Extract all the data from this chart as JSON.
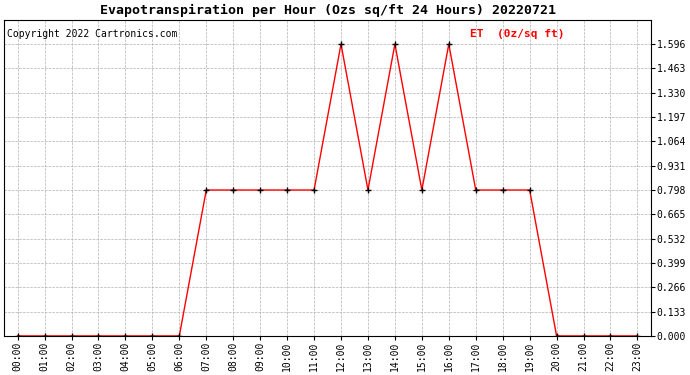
{
  "title": "Evapotranspiration per Hour (Ozs sq/ft 24 Hours) 20220721",
  "copyright": "Copyright 2022 Cartronics.com",
  "legend_label": "ET  (0z/sq ft)",
  "hours": [
    0,
    1,
    2,
    3,
    4,
    5,
    6,
    7,
    8,
    9,
    10,
    11,
    12,
    13,
    14,
    15,
    16,
    17,
    18,
    19,
    20,
    21,
    22,
    23
  ],
  "values": [
    0.0,
    0.0,
    0.0,
    0.0,
    0.0,
    0.0,
    0.0,
    0.798,
    0.798,
    0.798,
    0.798,
    0.798,
    1.596,
    0.798,
    1.596,
    0.798,
    1.596,
    0.798,
    0.798,
    0.798,
    0.0,
    0.0,
    0.0,
    0.0
  ],
  "line_color": "#ff0000",
  "marker_color": "#000000",
  "grid_color": "#b0b0b0",
  "background_color": "#ffffff",
  "title_color": "#000000",
  "copyright_color": "#000000",
  "legend_color": "#ff0000",
  "ylim": [
    0.0,
    1.729
  ],
  "yticks": [
    0.0,
    0.133,
    0.266,
    0.399,
    0.532,
    0.665,
    0.798,
    0.931,
    1.064,
    1.197,
    1.33,
    1.463,
    1.596
  ],
  "title_fontsize": 9.5,
  "copyright_fontsize": 7,
  "legend_fontsize": 8,
  "tick_fontsize": 7
}
